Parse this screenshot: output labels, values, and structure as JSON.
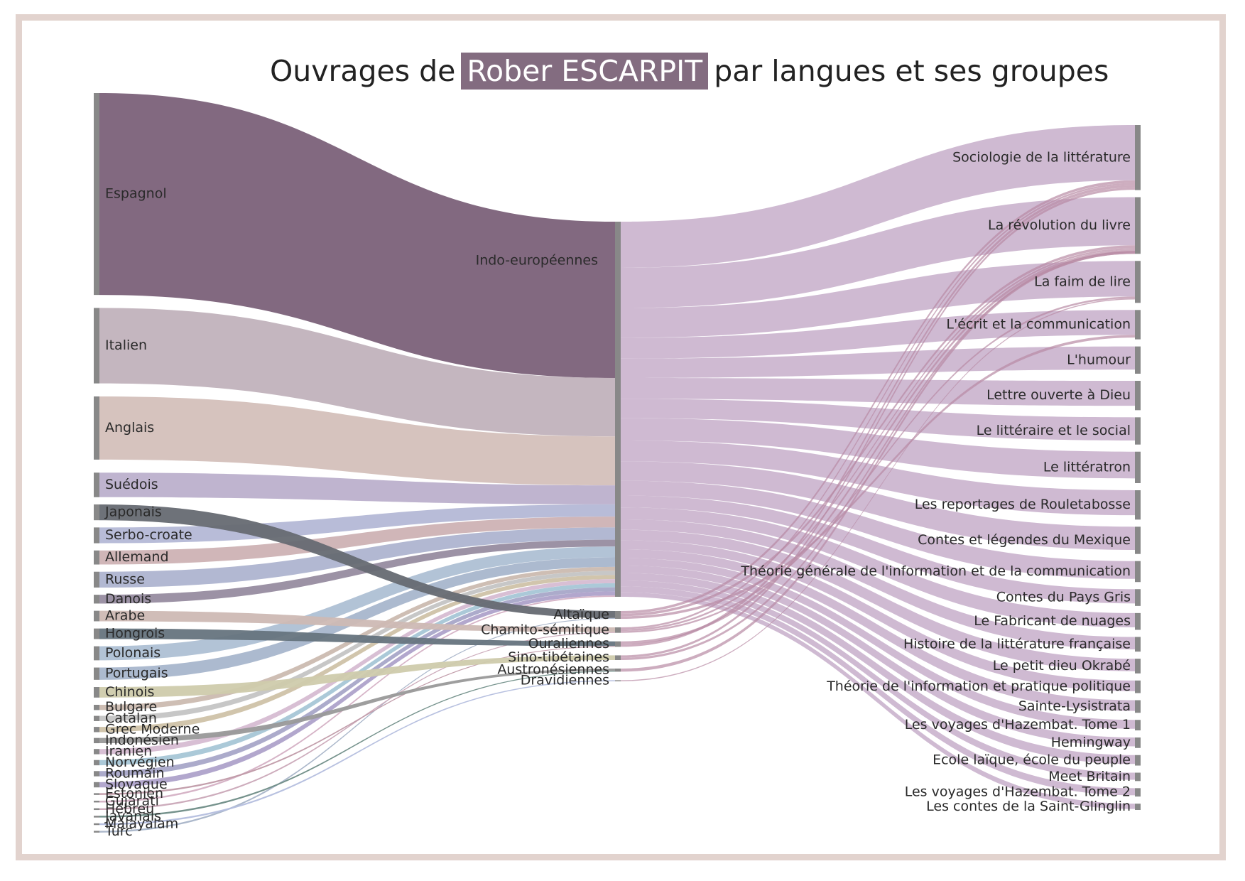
{
  "page": {
    "title_prefix": "Ouvrages de",
    "title_highlight": "Rober ESCARPIT",
    "title_suffix": "par langues et ses groupes",
    "frame_color": "#e2d3ce",
    "highlight_color": "#836c80"
  },
  "chart_data": {
    "type": "sankey",
    "node_color": "#888888",
    "languages": [
      {
        "name": "Espagnol",
        "value": 115,
        "color": "#7b6179"
      },
      {
        "name": "Italien",
        "value": 43,
        "color": "#c1b2bc"
      },
      {
        "name": "Anglais",
        "value": 36,
        "color": "#d4c0ba"
      },
      {
        "name": "Suédois",
        "value": 14,
        "color": "#bcb0cc"
      },
      {
        "name": "Japonais",
        "value": 9,
        "color": "#666a72"
      },
      {
        "name": "Serbo-croate",
        "value": 9,
        "color": "#b4b8d6"
      },
      {
        "name": "Allemand",
        "value": 8,
        "color": "#ceb2b4"
      },
      {
        "name": "Russe",
        "value": 9,
        "color": "#aeb4d0"
      },
      {
        "name": "Danois",
        "value": 5,
        "color": "#978ca0"
      },
      {
        "name": "Arabe",
        "value": 6,
        "color": "#cdb9b4"
      },
      {
        "name": "Hongrois",
        "value": 6,
        "color": "#66747e"
      },
      {
        "name": "Polonais",
        "value": 8,
        "color": "#aec0d4"
      },
      {
        "name": "Portugais",
        "value": 7,
        "color": "#a8b6cc"
      },
      {
        "name": "Chinois",
        "value": 6,
        "color": "#cfcbac"
      },
      {
        "name": "Bulgare",
        "value": 3,
        "color": "#cbbab0"
      },
      {
        "name": "Catalan",
        "value": 3,
        "color": "#c4c4c4"
      },
      {
        "name": "Grec Moderne",
        "value": 3,
        "color": "#cfc2a8"
      },
      {
        "name": "Indonésien",
        "value": 3,
        "color": "#999999"
      },
      {
        "name": "Iranien",
        "value": 3,
        "color": "#d6bcd2"
      },
      {
        "name": "Norvégien",
        "value": 3,
        "color": "#a6c6d6"
      },
      {
        "name": "Roumain",
        "value": 3,
        "color": "#a8a6c8"
      },
      {
        "name": "Slovaque",
        "value": 3,
        "color": "#aea2ca"
      },
      {
        "name": "Estonien",
        "value": 1,
        "color": "#c09aa8"
      },
      {
        "name": "Gujarati",
        "value": 1,
        "color": "#d4b0c4"
      },
      {
        "name": "Hébreu",
        "value": 1,
        "color": "#caa8b8"
      },
      {
        "name": "Javanais",
        "value": 1,
        "color": "#6e8c86"
      },
      {
        "name": "Malayalam",
        "value": 1,
        "color": "#b4bede"
      },
      {
        "name": "Turc",
        "value": 1,
        "color": "#a8b4c8"
      }
    ],
    "groups": [
      {
        "name": "Indo-européennes",
        "members": [
          "Espagnol",
          "Italien",
          "Anglais",
          "Suédois",
          "Serbo-croate",
          "Allemand",
          "Russe",
          "Danois",
          "Polonais",
          "Portugais",
          "Bulgare",
          "Catalan",
          "Grec Moderne",
          "Iranien",
          "Norvégien",
          "Roumain",
          "Slovaque",
          "Gujarati"
        ]
      },
      {
        "name": "Altaïque",
        "members": [
          "Japonais",
          "Turc"
        ]
      },
      {
        "name": "Chamito-sémitique",
        "members": [
          "Arabe",
          "Hébreu"
        ]
      },
      {
        "name": "Ouraliennes",
        "members": [
          "Hongrois",
          "Estonien"
        ]
      },
      {
        "name": "Sino-tibétaines",
        "members": [
          "Chinois"
        ]
      },
      {
        "name": "Austronésiennes",
        "members": [
          "Indonésien",
          "Javanais"
        ]
      },
      {
        "name": "Dravidiennes",
        "members": [
          "Malayalam"
        ]
      }
    ],
    "works": [
      {
        "name": "Sociologie de la littérature",
        "value": 31
      },
      {
        "name": "La révolution du livre",
        "value": 27
      },
      {
        "name": "La faim de lire",
        "value": 20
      },
      {
        "name": "L'écrit et la communication",
        "value": 14
      },
      {
        "name": "L'humour",
        "value": 13
      },
      {
        "name": "Lettre ouverte à Dieu",
        "value": 14
      },
      {
        "name": "Le littéraire et le social",
        "value": 13
      },
      {
        "name": "Le littératron",
        "value": 15
      },
      {
        "name": "Les reportages de Rouletabosse",
        "value": 14
      },
      {
        "name": "Contes et légendes du Mexique",
        "value": 13
      },
      {
        "name": "Théorie générale de l'information et de la communication",
        "value": 10
      },
      {
        "name": "Contes du Pays Gris",
        "value": 8
      },
      {
        "name": "Le Fabricant de nuages",
        "value": 8
      },
      {
        "name": "Histoire de la littérature française",
        "value": 7
      },
      {
        "name": "Le petit dieu Okrabé",
        "value": 7
      },
      {
        "name": "Théorie de l'information et pratique politique",
        "value": 6
      },
      {
        "name": "Sainte-Lysistrata",
        "value": 6
      },
      {
        "name": "Les voyages d'Hazembat. Tome 1",
        "value": 5
      },
      {
        "name": "Hemingway",
        "value": 5
      },
      {
        "name": "Ecole laïque, école du peuple",
        "value": 5
      },
      {
        "name": "Meet Britain",
        "value": 4
      },
      {
        "name": "Les voyages d'Hazembat. Tome 2",
        "value": 4
      },
      {
        "name": "Les contes de la Saint-Glinglin",
        "value": 3
      }
    ],
    "group_to_work": [
      {
        "group": "Altaïque",
        "works": [
          "Sociologie de la littérature",
          "La révolution du livre",
          "L'écrit et la communication"
        ]
      },
      {
        "group": "Chamito-sémitique",
        "works": [
          "Sociologie de la littérature",
          "La révolution du livre",
          "La faim de lire"
        ]
      },
      {
        "group": "Ouraliennes",
        "works": [
          "La révolution du livre",
          "Sociologie de la littérature"
        ]
      },
      {
        "group": "Sino-tibétaines",
        "works": [
          "Sociologie de la littérature",
          "La révolution du livre"
        ]
      },
      {
        "group": "Austronésiennes",
        "works": [
          "La révolution du livre"
        ]
      },
      {
        "group": "Dravidiennes",
        "works": [
          "La faim de lire"
        ]
      }
    ]
  }
}
